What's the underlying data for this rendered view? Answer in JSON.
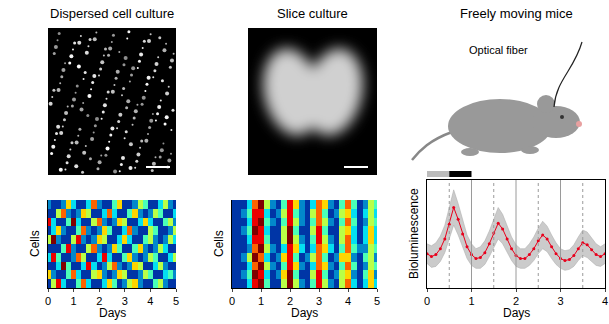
{
  "chart_data": [
    {
      "type": "heatmap",
      "title": "Dispersed cell culture",
      "x_label": "Days",
      "y_label": "Cells",
      "tick_labels": "x",
      "xlim": [
        0,
        5
      ],
      "xticks": [
        0,
        1,
        2,
        3,
        4,
        5
      ],
      "zlim": [
        0,
        9
      ],
      "x": [
        0,
        0.2,
        0.4,
        0.6,
        0.8,
        1,
        1.2,
        1.4,
        1.6,
        1.8,
        2,
        2.2,
        2.4,
        2.6,
        2.8,
        3,
        3.2,
        3.4,
        3.6,
        3.8,
        4,
        4.2,
        4.4,
        4.6,
        4.8,
        5
      ],
      "z": [
        [
          1,
          5,
          8,
          3,
          1,
          1,
          4,
          7,
          3,
          1,
          1,
          3,
          6,
          4,
          1,
          2,
          5,
          6,
          2,
          1,
          1,
          4,
          5,
          2,
          1,
          1
        ],
        [
          6,
          2,
          1,
          1,
          4,
          7,
          3,
          1,
          1,
          5,
          6,
          2,
          1,
          2,
          6,
          5,
          1,
          1,
          2,
          5,
          4,
          1,
          1,
          3,
          4,
          2
        ],
        [
          1,
          1,
          3,
          9,
          4,
          1,
          1,
          3,
          8,
          3,
          1,
          2,
          5,
          7,
          2,
          1,
          2,
          6,
          5,
          1,
          1,
          3,
          5,
          2,
          1,
          1
        ],
        [
          3,
          8,
          4,
          1,
          1,
          2,
          7,
          5,
          1,
          1,
          3,
          8,
          3,
          1,
          1,
          4,
          6,
          2,
          1,
          2,
          5,
          4,
          1,
          1,
          3,
          5
        ],
        [
          1,
          1,
          1,
          4,
          8,
          2,
          1,
          1,
          5,
          7,
          2,
          1,
          2,
          6,
          4,
          1,
          1,
          4,
          6,
          2,
          1,
          2,
          5,
          3,
          1,
          1
        ],
        [
          5,
          9,
          2,
          1,
          1,
          5,
          8,
          2,
          1,
          2,
          6,
          5,
          1,
          1,
          3,
          6,
          3,
          1,
          1,
          4,
          5,
          2,
          1,
          2,
          5,
          3
        ],
        [
          1,
          3,
          6,
          2,
          1,
          1,
          4,
          7,
          2,
          1,
          2,
          6,
          4,
          1,
          1,
          3,
          7,
          2,
          1,
          1,
          5,
          4,
          1,
          1,
          2,
          5
        ],
        [
          8,
          3,
          1,
          1,
          4,
          9,
          3,
          1,
          1,
          5,
          7,
          2,
          1,
          2,
          6,
          5,
          1,
          1,
          3,
          6,
          3,
          1,
          1,
          4,
          5,
          2
        ],
        [
          1,
          1,
          5,
          7,
          2,
          1,
          2,
          6,
          5,
          1,
          1,
          3,
          7,
          3,
          1,
          1,
          4,
          6,
          2,
          1,
          2,
          5,
          4,
          1,
          1,
          3
        ],
        [
          2,
          1,
          1,
          2,
          6,
          3,
          1,
          1,
          3,
          7,
          2,
          1,
          1,
          4,
          6,
          1,
          1,
          2,
          5,
          4,
          1,
          1,
          3,
          5,
          2,
          1
        ]
      ]
    },
    {
      "type": "heatmap",
      "title": "Slice culture",
      "x_label": "Days",
      "y_label": "Cells",
      "tick_labels": "x",
      "xlim": [
        0,
        5
      ],
      "xticks": [
        0,
        1,
        2,
        3,
        4,
        5
      ],
      "zlim": [
        0,
        9
      ],
      "x": [
        0,
        0.2,
        0.4,
        0.6,
        0.8,
        1,
        1.2,
        1.4,
        1.6,
        1.8,
        2,
        2.2,
        2.4,
        2.6,
        2.8,
        3,
        3.2,
        3.4,
        3.6,
        3.8,
        4,
        4.2,
        4.4,
        4.6,
        4.8,
        5
      ],
      "z": [
        [
          1,
          1,
          1,
          3,
          8,
          9,
          4,
          1,
          1,
          5,
          9,
          5,
          2,
          1,
          4,
          8,
          5,
          2,
          1,
          5,
          7,
          3,
          1,
          3,
          6,
          3
        ],
        [
          1,
          1,
          2,
          4,
          9,
          8,
          3,
          1,
          2,
          6,
          9,
          4,
          1,
          1,
          5,
          8,
          4,
          1,
          2,
          5,
          6,
          2,
          1,
          4,
          6,
          2
        ],
        [
          1,
          1,
          1,
          3,
          7,
          9,
          5,
          2,
          1,
          4,
          8,
          6,
          2,
          1,
          3,
          7,
          6,
          2,
          1,
          4,
          7,
          4,
          1,
          2,
          5,
          4
        ],
        [
          1,
          1,
          2,
          5,
          9,
          7,
          3,
          1,
          2,
          6,
          8,
          4,
          1,
          2,
          5,
          7,
          4,
          1,
          2,
          6,
          6,
          2,
          1,
          4,
          5,
          2
        ],
        [
          1,
          1,
          1,
          2,
          7,
          9,
          5,
          2,
          1,
          3,
          8,
          6,
          3,
          1,
          3,
          7,
          6,
          3,
          1,
          4,
          7,
          4,
          2,
          2,
          5,
          4
        ],
        [
          1,
          1,
          1,
          3,
          8,
          8,
          4,
          1,
          1,
          5,
          9,
          5,
          2,
          1,
          4,
          8,
          5,
          2,
          1,
          5,
          7,
          3,
          1,
          3,
          6,
          3
        ],
        [
          1,
          1,
          2,
          4,
          9,
          8,
          3,
          1,
          1,
          5,
          9,
          4,
          1,
          1,
          5,
          8,
          4,
          1,
          1,
          5,
          6,
          3,
          1,
          3,
          6,
          3
        ],
        [
          1,
          1,
          1,
          3,
          8,
          9,
          4,
          2,
          1,
          4,
          8,
          5,
          2,
          1,
          4,
          7,
          5,
          2,
          1,
          4,
          7,
          4,
          1,
          2,
          5,
          4
        ],
        [
          1,
          1,
          2,
          4,
          8,
          8,
          3,
          1,
          2,
          5,
          8,
          4,
          2,
          1,
          5,
          7,
          4,
          1,
          2,
          5,
          6,
          3,
          1,
          3,
          5,
          3
        ],
        [
          1,
          1,
          1,
          3,
          7,
          9,
          5,
          2,
          1,
          4,
          8,
          6,
          2,
          1,
          3,
          7,
          6,
          2,
          1,
          4,
          7,
          4,
          1,
          2,
          5,
          4
        ]
      ]
    },
    {
      "type": "line",
      "title": "Freely moving mice",
      "x_label": "Days",
      "y_label": "Bioluminescence",
      "tick_labels": "x",
      "annotations": [
        "Optical fiber"
      ],
      "xlim": [
        0,
        4
      ],
      "xticks": [
        0,
        1,
        2,
        3,
        4
      ],
      "ylim": [
        0,
        11
      ],
      "light_dark": [
        {
          "x0": 0,
          "x1": 0.5,
          "color": "#bbbbbb"
        },
        {
          "x0": 0.5,
          "x1": 1,
          "color": "#000000"
        }
      ],
      "day_lines": [
        1,
        2,
        3
      ],
      "night_lines": [
        0.5,
        1.5,
        2.5,
        3.5
      ],
      "x": [
        0,
        0.1,
        0.2,
        0.3,
        0.4,
        0.5,
        0.6,
        0.7,
        0.8,
        0.9,
        1,
        1.1,
        1.2,
        1.3,
        1.4,
        1.5,
        1.6,
        1.7,
        1.8,
        1.9,
        2,
        2.1,
        2.2,
        2.3,
        2.4,
        2.5,
        2.6,
        2.7,
        2.8,
        2.9,
        3,
        3.1,
        3.2,
        3.3,
        3.4,
        3.5,
        3.6,
        3.7,
        3.8,
        3.9,
        4
      ],
      "series": [
        {
          "color": "#e8001c",
          "marker": "circle",
          "values": [
            3.5,
            3.2,
            3.4,
            4.0,
            5.0,
            6.5,
            8.2,
            7.0,
            5.5,
            4.2,
            3.4,
            3.0,
            3.1,
            3.6,
            4.5,
            5.6,
            6.6,
            6.0,
            5.0,
            4.0,
            3.3,
            3.0,
            3.0,
            3.4,
            4.0,
            4.8,
            5.4,
            5.0,
            4.2,
            3.5,
            3.0,
            2.8,
            2.9,
            3.3,
            4.0,
            4.6,
            4.4,
            3.9,
            3.4,
            3.2,
            3.5
          ],
          "error": [
            1.0,
            1.1,
            1.2,
            1.3,
            1.4,
            1.6,
            1.8,
            1.6,
            1.4,
            1.2,
            1.1,
            1.0,
            1.1,
            1.2,
            1.3,
            1.5,
            1.6,
            1.5,
            1.3,
            1.2,
            1.1,
            1.0,
            1.0,
            1.1,
            1.2,
            1.3,
            1.4,
            1.3,
            1.2,
            1.1,
            1.0,
            1.0,
            1.0,
            1.1,
            1.2,
            1.3,
            1.3,
            1.2,
            1.1,
            1.0,
            1.0
          ]
        }
      ]
    }
  ]
}
